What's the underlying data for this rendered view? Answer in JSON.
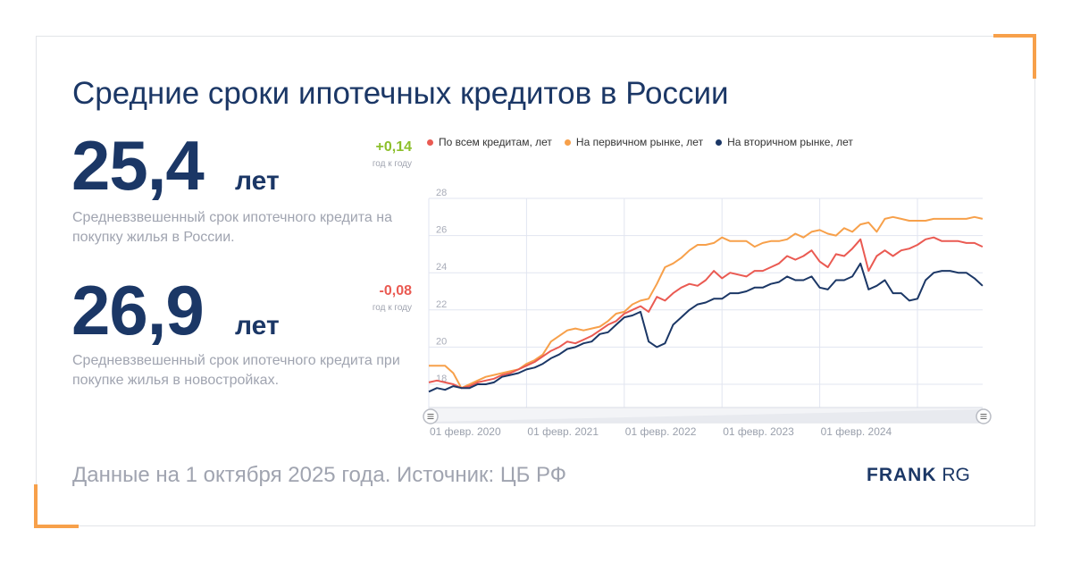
{
  "title": "Средние сроки ипотечных кредитов в России",
  "stats": [
    {
      "value": "25,4",
      "unit": "лет",
      "delta": "+0,14",
      "delta_color": "#8cbf2b",
      "delta_label": "год к году",
      "description": "Средневзвешенный срок ипотечного кредита на покупку жилья в России."
    },
    {
      "value": "26,9",
      "unit": "лет",
      "delta": "-0,08",
      "delta_color": "#ea5a52",
      "delta_label": "год к году",
      "description": "Средневзвешенный срок ипотечного кредита при покупке жилья в новостройках."
    }
  ],
  "footer": "Данные на 1 октября 2025 года. Источник: ЦБ РФ",
  "logo": {
    "bold": "FRANK",
    "light": "RG"
  },
  "colors": {
    "accent": "#f7a04a",
    "primary": "#1b3766"
  },
  "chart_data": {
    "type": "line",
    "x_start": "2020-02",
    "x_frequency": "monthly",
    "x_ticks": [
      "01 февр. 2020",
      "01 февр. 2021",
      "01 февр. 2022",
      "01 февр. 2023",
      "01 февр. 2024"
    ],
    "y_ticks": [
      "18",
      "20",
      "22",
      "24",
      "26",
      "28"
    ],
    "ylim": [
      16.8,
      28
    ],
    "grid": true,
    "legend_position": "top",
    "navigator": true,
    "series": [
      {
        "name": "По всем кредитам, лет",
        "color": "#ea5a52",
        "values": [
          18.1,
          18.2,
          18.1,
          18.0,
          17.8,
          17.9,
          18.1,
          18.2,
          18.3,
          18.5,
          18.6,
          18.8,
          19.0,
          19.2,
          19.5,
          19.8,
          20.0,
          20.3,
          20.2,
          20.4,
          20.6,
          20.9,
          21.2,
          21.4,
          21.8,
          22.0,
          22.2,
          21.9,
          22.7,
          22.5,
          22.9,
          23.2,
          23.4,
          23.3,
          23.6,
          24.1,
          23.7,
          24.0,
          23.9,
          23.8,
          24.1,
          24.1,
          24.3,
          24.5,
          24.9,
          24.7,
          24.9,
          25.2,
          24.6,
          24.3,
          25.0,
          24.9,
          25.3,
          25.8,
          24.1,
          24.9,
          25.2,
          24.9,
          25.2,
          25.3,
          25.5,
          25.8,
          25.9,
          25.7,
          25.7,
          25.7,
          25.6,
          25.6,
          25.4
        ]
      },
      {
        "name": "На первичном рынке, лет",
        "color": "#f7a04a",
        "values": [
          19.0,
          19.0,
          19.0,
          18.6,
          17.8,
          18.0,
          18.2,
          18.4,
          18.5,
          18.6,
          18.7,
          18.8,
          19.1,
          19.3,
          19.6,
          20.3,
          20.6,
          20.9,
          21.0,
          20.9,
          21.0,
          21.1,
          21.4,
          21.8,
          21.9,
          22.3,
          22.5,
          22.6,
          23.4,
          24.3,
          24.5,
          24.8,
          25.2,
          25.5,
          25.5,
          25.6,
          25.9,
          25.7,
          25.7,
          25.7,
          25.4,
          25.6,
          25.7,
          25.7,
          25.8,
          26.1,
          25.9,
          26.2,
          26.3,
          26.1,
          26.0,
          26.4,
          26.2,
          26.6,
          26.7,
          26.2,
          26.9,
          27.0,
          26.9,
          26.8,
          26.8,
          26.8,
          26.9,
          26.9,
          26.9,
          26.9,
          26.9,
          27.0,
          26.9
        ]
      },
      {
        "name": "На вторичном рынке, лет",
        "color": "#1b3766",
        "values": [
          17.6,
          17.8,
          17.7,
          17.9,
          17.8,
          17.8,
          18.0,
          18.0,
          18.1,
          18.4,
          18.5,
          18.6,
          18.8,
          18.9,
          19.1,
          19.4,
          19.6,
          19.9,
          20.0,
          20.2,
          20.3,
          20.7,
          20.8,
          21.2,
          21.6,
          21.7,
          21.9,
          20.3,
          20.0,
          20.2,
          21.2,
          21.6,
          22.0,
          22.3,
          22.4,
          22.6,
          22.6,
          22.9,
          22.9,
          23.0,
          23.2,
          23.2,
          23.4,
          23.5,
          23.8,
          23.6,
          23.6,
          23.8,
          23.2,
          23.1,
          23.6,
          23.6,
          23.8,
          24.5,
          23.1,
          23.3,
          23.6,
          22.9,
          22.9,
          22.5,
          22.6,
          23.6,
          24.0,
          24.1,
          24.1,
          24.0,
          24.0,
          23.7,
          23.3
        ]
      }
    ]
  }
}
